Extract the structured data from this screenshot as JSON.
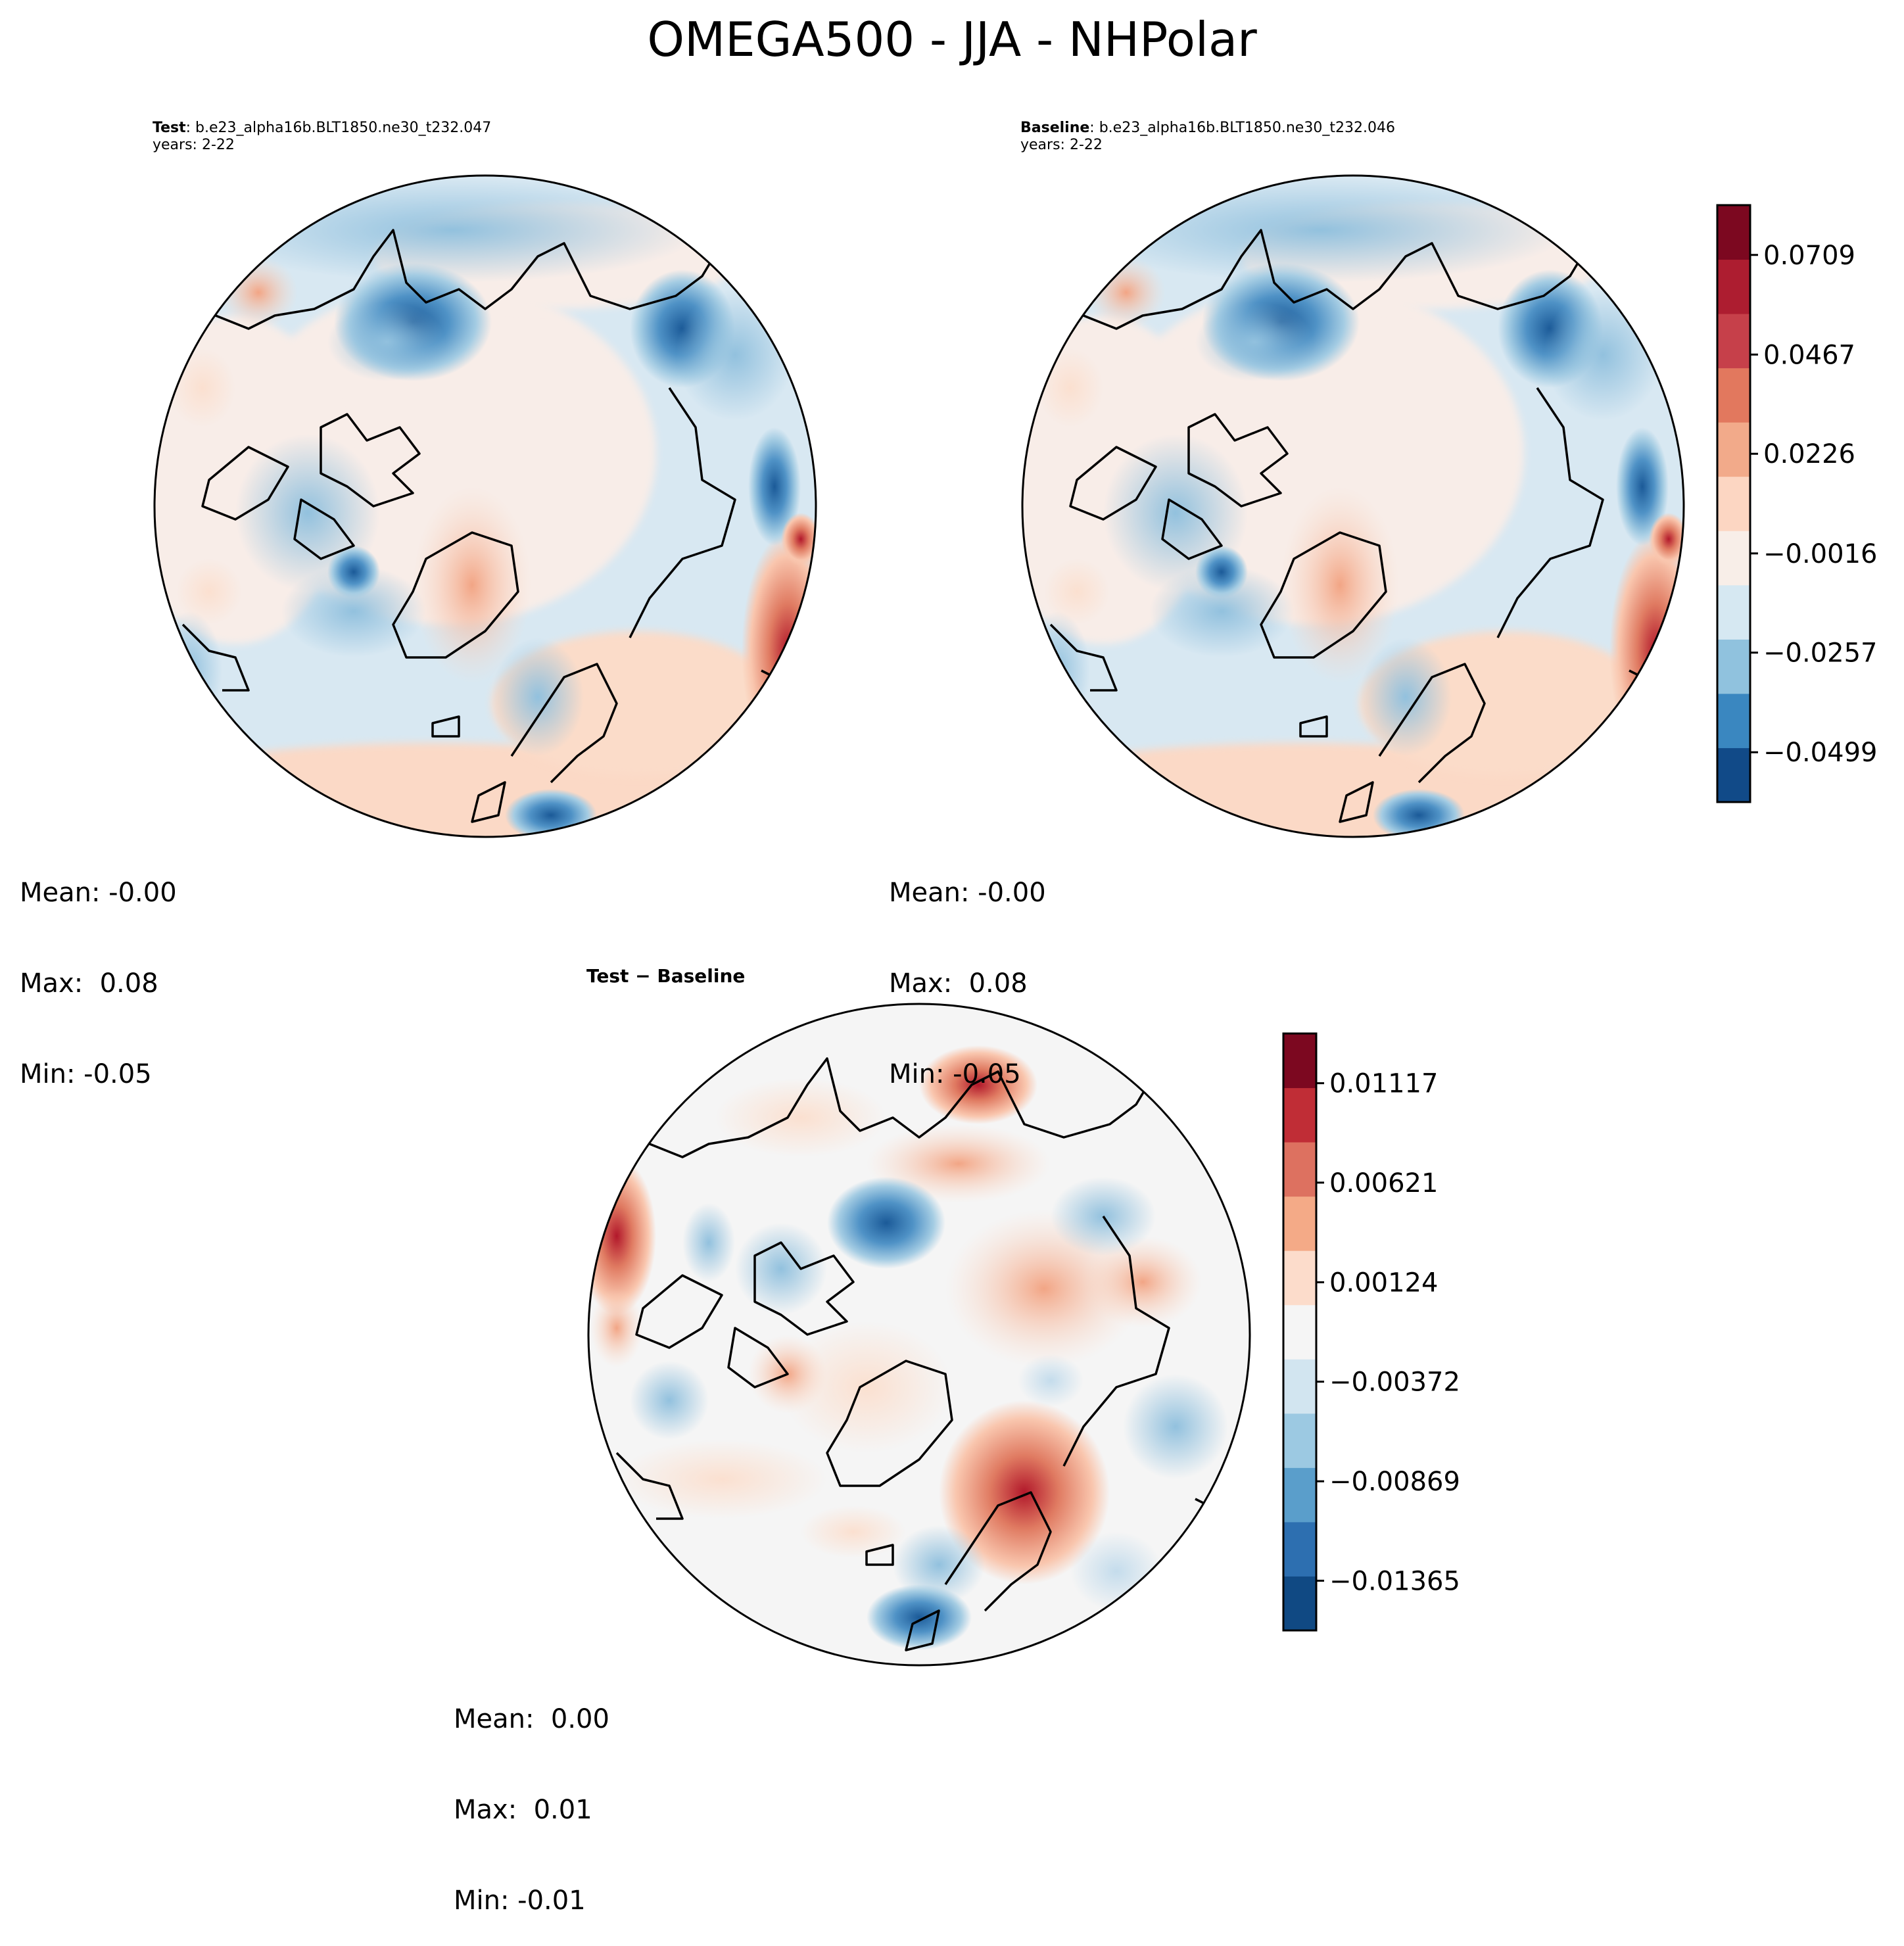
{
  "figure": {
    "title": "OMEGA500 - JJA - NHPolar"
  },
  "panels": {
    "test": {
      "label": "Test",
      "case": ": b.e23_alpha16b.BLT1850.ne30_t232.047",
      "years": "years: 2-22",
      "stats": {
        "mean": "Mean: -0.00",
        "max": "Max:  0.08",
        "min": "Min: -0.05"
      }
    },
    "baseline": {
      "label": "Baseline",
      "case": ": b.e23_alpha16b.BLT1850.ne30_t232.046",
      "years": "years: 2-22",
      "stats": {
        "mean": "Mean: -0.00",
        "max": "Max:  0.08",
        "min": "Min: -0.05"
      }
    },
    "diff": {
      "title": "Test − Baseline",
      "stats": {
        "mean": "Mean:  0.00",
        "max": "Max:  0.01",
        "min": "Min: -0.01"
      }
    }
  },
  "chart_data": [
    {
      "type": "heatmap",
      "title": "Test: b.e23_alpha16b.BLT1850.ne30_t232.047",
      "projection": "North Polar Stereographic",
      "stats": {
        "mean": -0.0,
        "max": 0.08,
        "min": -0.05
      },
      "colorbar_ref": "main"
    },
    {
      "type": "heatmap",
      "title": "Baseline: b.e23_alpha16b.BLT1850.ne30_t232.046",
      "projection": "North Polar Stereographic",
      "stats": {
        "mean": -0.0,
        "max": 0.08,
        "min": -0.05
      },
      "colorbar_ref": "main"
    },
    {
      "type": "heatmap",
      "title": "Test − Baseline",
      "projection": "North Polar Stereographic",
      "stats": {
        "mean": 0.0,
        "max": 0.01,
        "min": -0.01
      },
      "colorbar_ref": "diff"
    }
  ],
  "colorbars": {
    "main": {
      "range": [
        -0.062,
        0.083
      ],
      "colors": [
        "#114a88",
        "#3a87c0",
        "#90c2de",
        "#d6e8f2",
        "#f8eee8",
        "#fcd6c2",
        "#f2aa8a",
        "#e2785e",
        "#c6404a",
        "#ad1d30",
        "#7c0820"
      ],
      "tick_values": [
        -0.0499,
        -0.0257,
        -0.0016,
        0.0226,
        0.0467,
        0.0709
      ],
      "tick_labels": [
        "−0.0499",
        "−0.0257",
        "−0.0016",
        "0.0226",
        "0.0467",
        "0.0709"
      ]
    },
    "diff": {
      "range": [
        -0.01613,
        0.01365
      ],
      "colors": [
        "#104983",
        "#2d6fb0",
        "#5a9ecb",
        "#9cc9e2",
        "#d2e5f0",
        "#f5f5f5",
        "#fcdccb",
        "#f4aa87",
        "#dd7160",
        "#c02d36",
        "#7c0820"
      ],
      "tick_values": [
        -0.01365,
        -0.00869,
        -0.00372,
        0.00124,
        0.00621,
        0.01117
      ],
      "tick_labels": [
        "−0.01365",
        "−0.00869",
        "−0.00372",
        "0.00124",
        "0.00621",
        "0.01117"
      ]
    }
  }
}
